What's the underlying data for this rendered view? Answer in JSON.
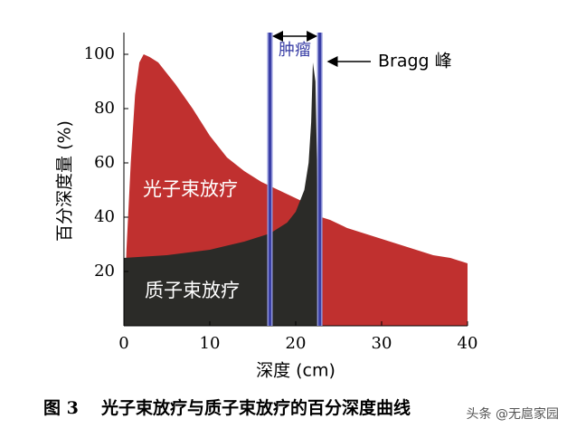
{
  "chart_data": {
    "type": "area",
    "y_label": "百分深度量 (%)",
    "x_label": "深度 (cm)",
    "xlim": [
      0,
      40
    ],
    "ylim": [
      0,
      108
    ],
    "xticks": [
      0,
      10,
      20,
      30,
      40
    ],
    "yticks": [
      20,
      40,
      60,
      80,
      100
    ],
    "series": [
      {
        "name": "光子束放疗",
        "color": "#c0302f",
        "x": [
          0,
          0.3,
          0.8,
          1.3,
          1.8,
          2.3,
          3,
          4,
          5,
          6,
          8,
          10,
          12,
          14,
          16,
          18,
          20,
          22,
          23,
          24,
          26,
          28,
          30,
          32,
          34,
          36,
          38,
          40
        ],
        "values": [
          0,
          28,
          60,
          85,
          97,
          100,
          99,
          97,
          93,
          89,
          80,
          70,
          62,
          57,
          53,
          50,
          47,
          44,
          40,
          39,
          36,
          34,
          32,
          30,
          28,
          26,
          25,
          23
        ]
      },
      {
        "name": "质子束放疗",
        "color": "#2b2b28",
        "x": [
          0,
          5,
          10,
          14,
          17,
          19,
          20,
          21,
          21.5,
          21.8,
          22,
          22.3,
          22.6,
          22.8,
          23
        ],
        "values": [
          25,
          26,
          28,
          31,
          34,
          38,
          42,
          50,
          60,
          75,
          97,
          90,
          40,
          5,
          0
        ]
      }
    ],
    "tumor_region": {
      "label": "肿瘤",
      "x": [
        17,
        22.8
      ]
    },
    "peak_label": "Bragg 峰",
    "figure_label": "图 3",
    "caption": "光子束放疗与质子束放疗的百分深度曲线",
    "watermark": "头条 @无扈家园"
  }
}
